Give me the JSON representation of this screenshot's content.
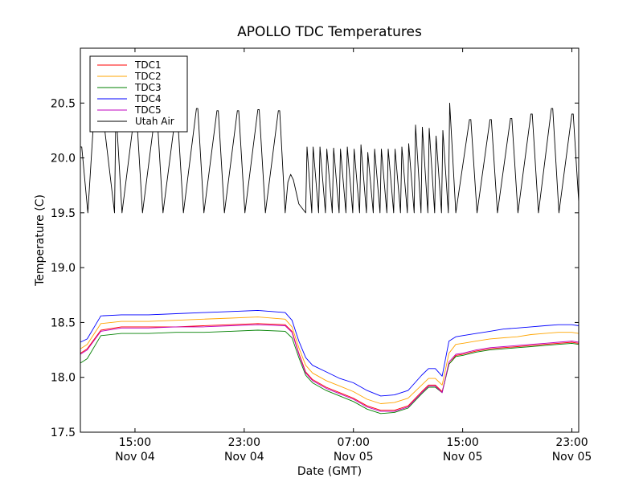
{
  "chart_data": {
    "type": "line",
    "title": "APOLLO TDC Temperatures",
    "xlabel": "Date (GMT)",
    "ylabel": "Temperature (C)",
    "ylim": [
      17.5,
      21.0
    ],
    "xlim_hours": [
      11.0,
      47.5
    ],
    "y_ticks": [
      {
        "value": 17.5,
        "label": "17.5"
      },
      {
        "value": 18.0,
        "label": "18.0"
      },
      {
        "value": 18.5,
        "label": "18.5"
      },
      {
        "value": 19.0,
        "label": "19.0"
      },
      {
        "value": 19.5,
        "label": "19.5"
      },
      {
        "value": 20.0,
        "label": "20.0"
      },
      {
        "value": 20.5,
        "label": "20.5"
      }
    ],
    "x_ticks": [
      {
        "hours": 15,
        "time": "15:00",
        "date": "Nov 04"
      },
      {
        "hours": 23,
        "time": "23:00",
        "date": "Nov 04"
      },
      {
        "hours": 31,
        "time": "07:00",
        "date": "Nov 05"
      },
      {
        "hours": 39,
        "time": "15:00",
        "date": "Nov 05"
      },
      {
        "hours": 47,
        "time": "23:00",
        "date": "Nov 05"
      }
    ],
    "legend_position": "top-left",
    "series": [
      {
        "name": "TDC1",
        "color": "#ff0000",
        "x": [
          11.0,
          11.5,
          12.5,
          14,
          16,
          18,
          20,
          22,
          24,
          26,
          26.5,
          27,
          27.5,
          28,
          29,
          30,
          31,
          32,
          33,
          34,
          35,
          36,
          36.5,
          37,
          37.5,
          38,
          38.5,
          39,
          40,
          41,
          42,
          43,
          44,
          45,
          46,
          47,
          47.5
        ],
        "y": [
          18.22,
          18.26,
          18.43,
          18.46,
          18.46,
          18.46,
          18.47,
          18.48,
          18.49,
          18.48,
          18.42,
          18.22,
          18.05,
          17.98,
          17.91,
          17.86,
          17.81,
          17.74,
          17.7,
          17.7,
          17.74,
          17.87,
          17.93,
          17.93,
          17.87,
          18.12,
          18.2,
          18.21,
          18.24,
          18.26,
          18.27,
          18.28,
          18.29,
          18.3,
          18.31,
          18.32,
          18.31
        ]
      },
      {
        "name": "TDC2",
        "color": "#ffa500",
        "x": [
          11.0,
          11.5,
          12.5,
          14,
          16,
          18,
          20,
          22,
          24,
          26,
          26.5,
          27,
          27.5,
          28,
          29,
          30,
          31,
          32,
          33,
          34,
          35,
          36,
          36.5,
          37,
          37.5,
          38,
          38.5,
          39,
          40,
          41,
          42,
          43,
          44,
          45,
          46,
          47,
          47.5
        ],
        "y": [
          18.26,
          18.3,
          18.49,
          18.51,
          18.51,
          18.52,
          18.53,
          18.54,
          18.55,
          18.53,
          18.46,
          18.27,
          18.11,
          18.04,
          17.97,
          17.92,
          17.87,
          17.8,
          17.76,
          17.77,
          17.81,
          17.93,
          17.99,
          17.99,
          17.93,
          18.22,
          18.3,
          18.31,
          18.33,
          18.35,
          18.36,
          18.37,
          18.39,
          18.4,
          18.41,
          18.41,
          18.4
        ]
      },
      {
        "name": "TDC3",
        "color": "#008000",
        "x": [
          11.0,
          11.5,
          12.5,
          14,
          16,
          18,
          20,
          22,
          24,
          26,
          26.5,
          27,
          27.5,
          28,
          29,
          30,
          31,
          32,
          33,
          34,
          35,
          36,
          36.5,
          37,
          37.5,
          38,
          38.5,
          39,
          40,
          41,
          42,
          43,
          44,
          45,
          46,
          47,
          47.5
        ],
        "y": [
          18.13,
          18.17,
          18.38,
          18.4,
          18.4,
          18.41,
          18.41,
          18.42,
          18.43,
          18.42,
          18.36,
          18.18,
          18.02,
          17.95,
          17.88,
          17.83,
          17.78,
          17.71,
          17.67,
          17.68,
          17.72,
          17.85,
          17.91,
          17.91,
          17.86,
          18.12,
          18.19,
          18.2,
          18.23,
          18.25,
          18.26,
          18.27,
          18.28,
          18.29,
          18.3,
          18.31,
          18.3
        ]
      },
      {
        "name": "TDC4",
        "color": "#0000ff",
        "x": [
          11.0,
          11.5,
          12.5,
          14,
          16,
          18,
          20,
          22,
          24,
          26,
          26.5,
          27,
          27.5,
          28,
          29,
          30,
          31,
          32,
          33,
          34,
          35,
          36,
          36.5,
          37,
          37.5,
          38,
          38.5,
          39,
          40,
          41,
          42,
          43,
          44,
          45,
          46,
          47,
          47.5
        ],
        "y": [
          18.32,
          18.35,
          18.56,
          18.57,
          18.57,
          18.58,
          18.59,
          18.6,
          18.61,
          18.59,
          18.52,
          18.33,
          18.18,
          18.11,
          18.05,
          17.99,
          17.95,
          17.88,
          17.83,
          17.84,
          17.88,
          18.02,
          18.08,
          18.08,
          18.01,
          18.33,
          18.37,
          18.38,
          18.4,
          18.42,
          18.44,
          18.45,
          18.46,
          18.47,
          18.48,
          18.48,
          18.47
        ]
      },
      {
        "name": "TDC5",
        "color": "#bf00bf",
        "x": [
          11.0,
          11.5,
          12.5,
          14,
          16,
          18,
          20,
          22,
          24,
          26,
          26.5,
          27,
          27.5,
          28,
          29,
          30,
          31,
          32,
          33,
          34,
          35,
          36,
          36.5,
          37,
          37.5,
          38,
          38.5,
          39,
          40,
          41,
          42,
          43,
          44,
          45,
          46,
          47,
          47.5
        ],
        "y": [
          18.21,
          18.25,
          18.42,
          18.45,
          18.45,
          18.46,
          18.46,
          18.47,
          18.48,
          18.47,
          18.41,
          18.21,
          18.04,
          17.97,
          17.9,
          17.85,
          17.8,
          17.73,
          17.69,
          17.69,
          17.73,
          17.86,
          17.92,
          17.92,
          17.86,
          18.14,
          18.21,
          18.22,
          18.25,
          18.27,
          18.28,
          18.29,
          18.3,
          18.31,
          18.32,
          18.33,
          18.32
        ]
      },
      {
        "name": "Utah Air",
        "color": "#000000",
        "x": [
          11.0,
          11.1,
          11.55,
          12.0,
          12.6,
          13.5,
          13.6,
          14.05,
          15.0,
          15.1,
          15.55,
          16.5,
          16.6,
          17.05,
          18.0,
          18.1,
          18.55,
          19.5,
          19.6,
          20.05,
          21.0,
          21.1,
          21.55,
          22.5,
          22.6,
          23.05,
          24.0,
          24.1,
          24.55,
          25.5,
          25.6,
          26.0,
          26.2,
          26.4,
          26.6,
          27.0,
          27.5,
          27.6,
          27.95,
          28.05,
          28.45,
          28.55,
          28.95,
          29.05,
          29.45,
          29.55,
          29.95,
          30.05,
          30.45,
          30.55,
          30.95,
          31.05,
          31.45,
          31.55,
          31.95,
          32.05,
          32.45,
          32.55,
          32.95,
          33.05,
          33.45,
          33.55,
          33.95,
          34.05,
          34.45,
          34.55,
          34.95,
          35.05,
          35.45,
          35.55,
          35.95,
          36.05,
          36.45,
          36.55,
          36.95,
          37.05,
          37.45,
          37.55,
          37.95,
          38.05,
          38.5,
          39.5,
          39.6,
          40.05,
          41.0,
          41.1,
          41.55,
          42.5,
          42.6,
          43.05,
          44.0,
          44.1,
          44.55,
          45.5,
          45.6,
          46.05,
          47.0,
          47.1,
          47.5
        ],
        "y": [
          20.1,
          20.1,
          19.5,
          20.4,
          20.45,
          19.5,
          20.45,
          19.5,
          20.44,
          20.44,
          19.5,
          20.43,
          20.43,
          19.5,
          20.42,
          20.42,
          19.5,
          20.45,
          20.45,
          19.5,
          20.43,
          20.43,
          19.5,
          20.43,
          20.43,
          19.5,
          20.44,
          20.44,
          19.5,
          20.43,
          20.43,
          19.5,
          19.78,
          19.85,
          19.8,
          19.58,
          19.5,
          20.1,
          19.5,
          20.1,
          19.5,
          20.1,
          19.5,
          20.08,
          19.5,
          20.09,
          19.5,
          20.08,
          19.5,
          20.1,
          19.5,
          20.08,
          19.5,
          20.12,
          19.5,
          20.05,
          19.5,
          20.08,
          19.5,
          20.08,
          19.5,
          20.08,
          19.5,
          20.08,
          19.5,
          20.1,
          19.5,
          20.13,
          19.5,
          20.3,
          19.5,
          20.28,
          19.5,
          20.27,
          19.5,
          20.2,
          19.5,
          20.25,
          19.5,
          20.5,
          19.5,
          20.35,
          20.35,
          19.5,
          20.35,
          20.35,
          19.5,
          20.36,
          20.36,
          19.5,
          20.4,
          20.4,
          19.5,
          20.45,
          20.45,
          19.5,
          20.4,
          20.4,
          19.6
        ]
      }
    ]
  }
}
